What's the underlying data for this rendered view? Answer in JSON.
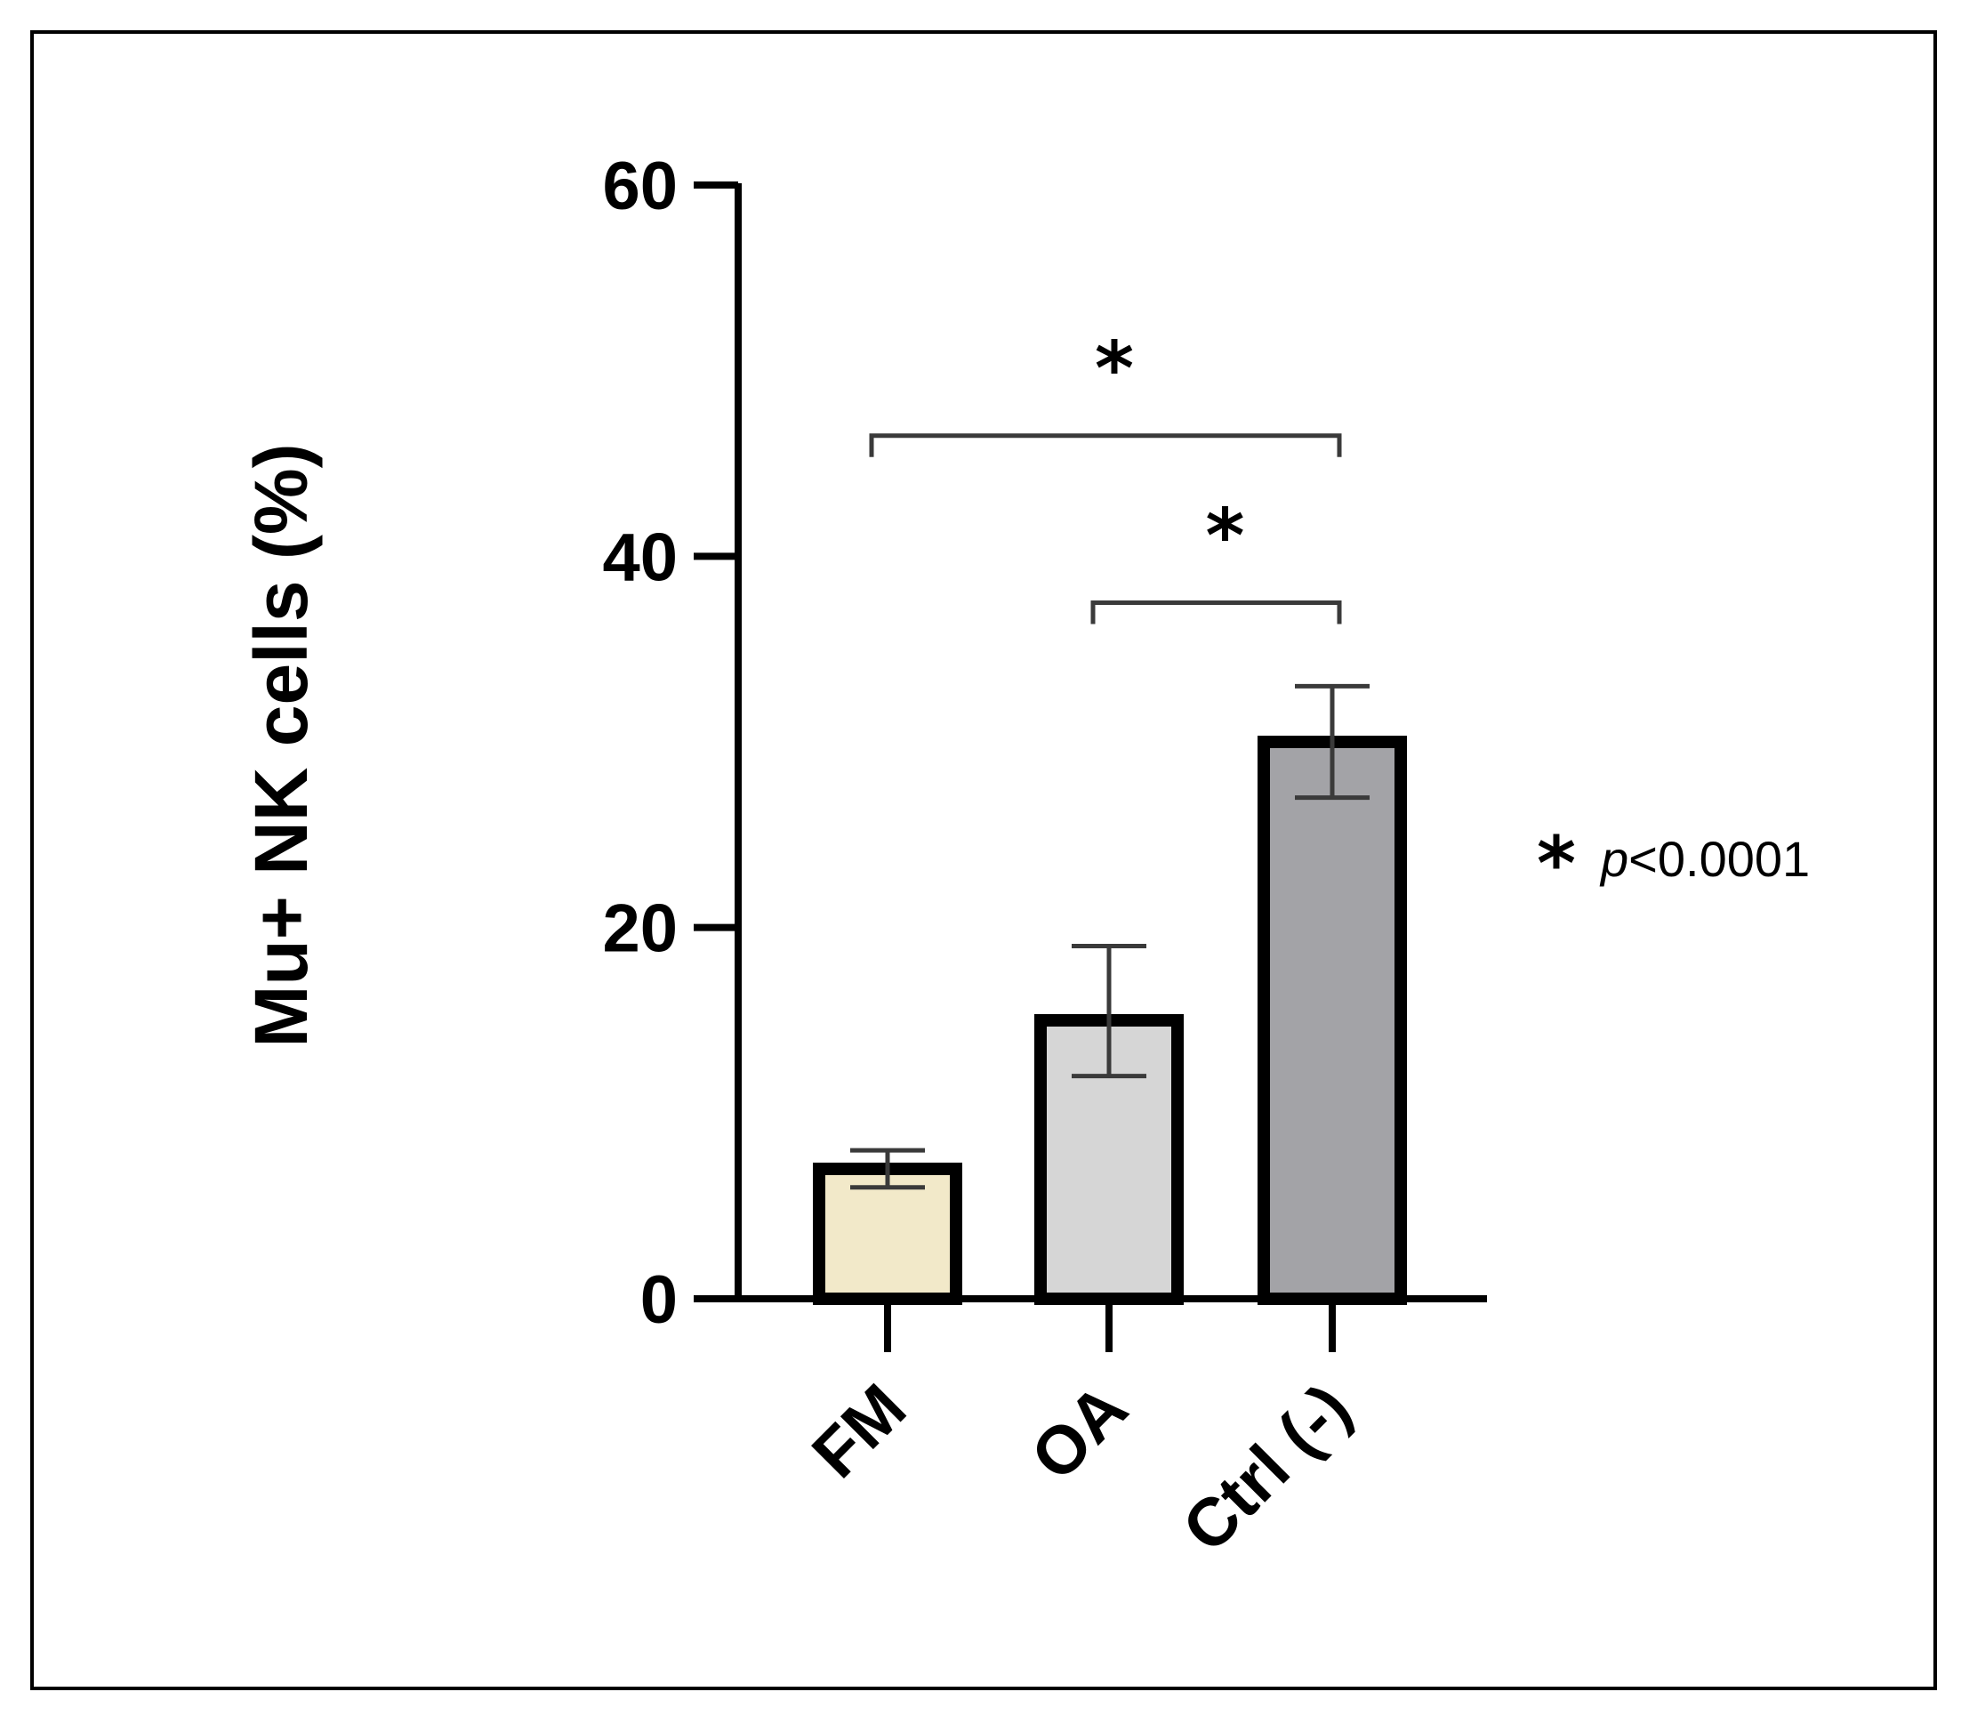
{
  "chart_data": {
    "type": "bar",
    "categories": [
      "FM",
      "OA",
      "Ctrl (-)"
    ],
    "values": [
      7,
      15,
      30
    ],
    "errors": [
      {
        "low": 6,
        "high": 8
      },
      {
        "low": 12,
        "high": 19
      },
      {
        "low": 27,
        "high": 33
      }
    ],
    "bar_colors": [
      "#f2e9c9",
      "#d6d6d6",
      "#a3a3a7"
    ],
    "ylabel": "Mu+ NK cells (%)",
    "xlabel": "",
    "ylim": [
      0,
      60
    ],
    "yticks": [
      "0",
      "20",
      "40",
      "60"
    ],
    "significance": [
      {
        "from": "FM",
        "to": "Ctrl (-)",
        "y": 46.5,
        "label": "*"
      },
      {
        "from": "OA",
        "to": "Ctrl (-)",
        "y": 37.5,
        "label": "*"
      }
    ],
    "annotation": {
      "star": "*",
      "p": "p",
      "rest": "<0.0001"
    }
  }
}
